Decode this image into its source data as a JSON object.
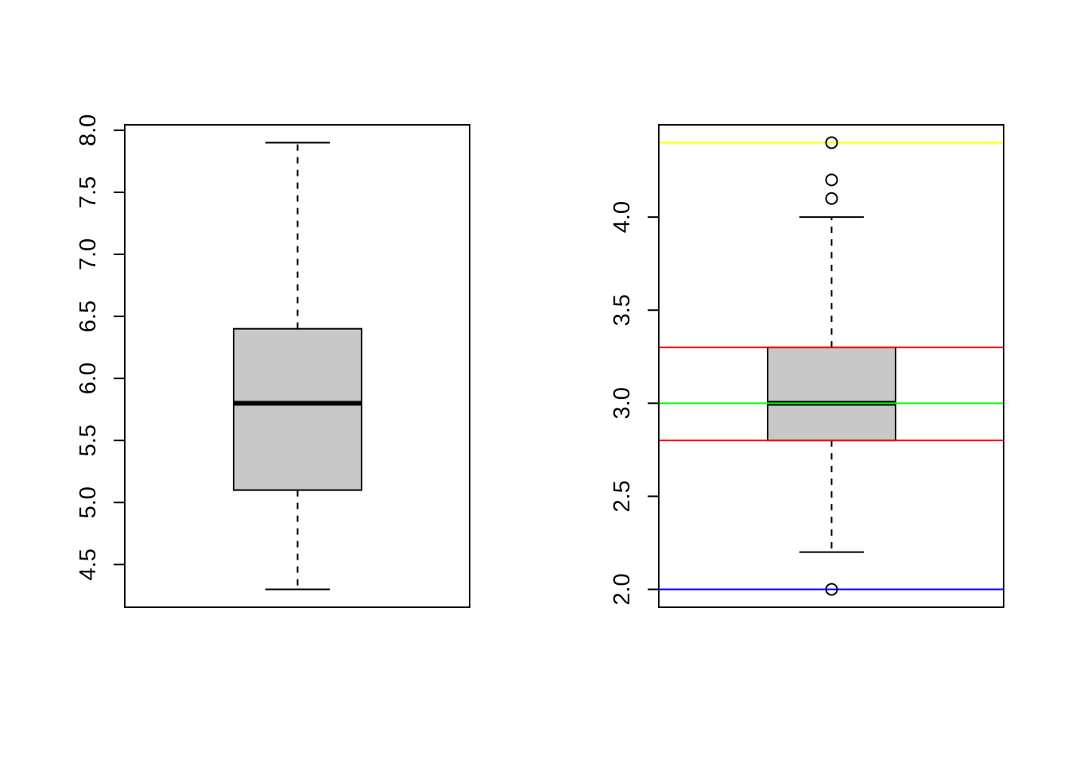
{
  "chart_data": [
    {
      "type": "boxplot",
      "title": "",
      "xlabel": "",
      "ylabel": "",
      "ylim": [
        4.3,
        7.9
      ],
      "yticks": [
        "4.5",
        "5.0",
        "5.5",
        "6.0",
        "6.5",
        "7.0",
        "7.5",
        "8.0"
      ],
      "grid": false,
      "box": {
        "min": 4.3,
        "q1": 5.1,
        "median": 5.8,
        "q3": 6.4,
        "max": 7.9,
        "outliers": []
      },
      "box_fill": "#c8c8c8",
      "hlines": []
    },
    {
      "type": "boxplot",
      "title": "",
      "xlabel": "",
      "ylabel": "",
      "ylim": [
        2.0,
        4.4
      ],
      "yticks": [
        "2.0",
        "2.5",
        "3.0",
        "3.5",
        "4.0"
      ],
      "grid": false,
      "box": {
        "min": 2.2,
        "q1": 2.8,
        "median": 3.0,
        "q3": 3.3,
        "max": 4.0,
        "outliers": [
          2.0,
          4.1,
          4.2,
          4.4
        ]
      },
      "box_fill": "#c8c8c8",
      "hlines": [
        {
          "y": 4.4,
          "color": "#ffff00"
        },
        {
          "y": 3.3,
          "color": "#ff0000"
        },
        {
          "y": 3.0,
          "color": "#00ff00"
        },
        {
          "y": 2.8,
          "color": "#ff0000"
        },
        {
          "y": 2.0,
          "color": "#0000ff"
        }
      ]
    }
  ]
}
